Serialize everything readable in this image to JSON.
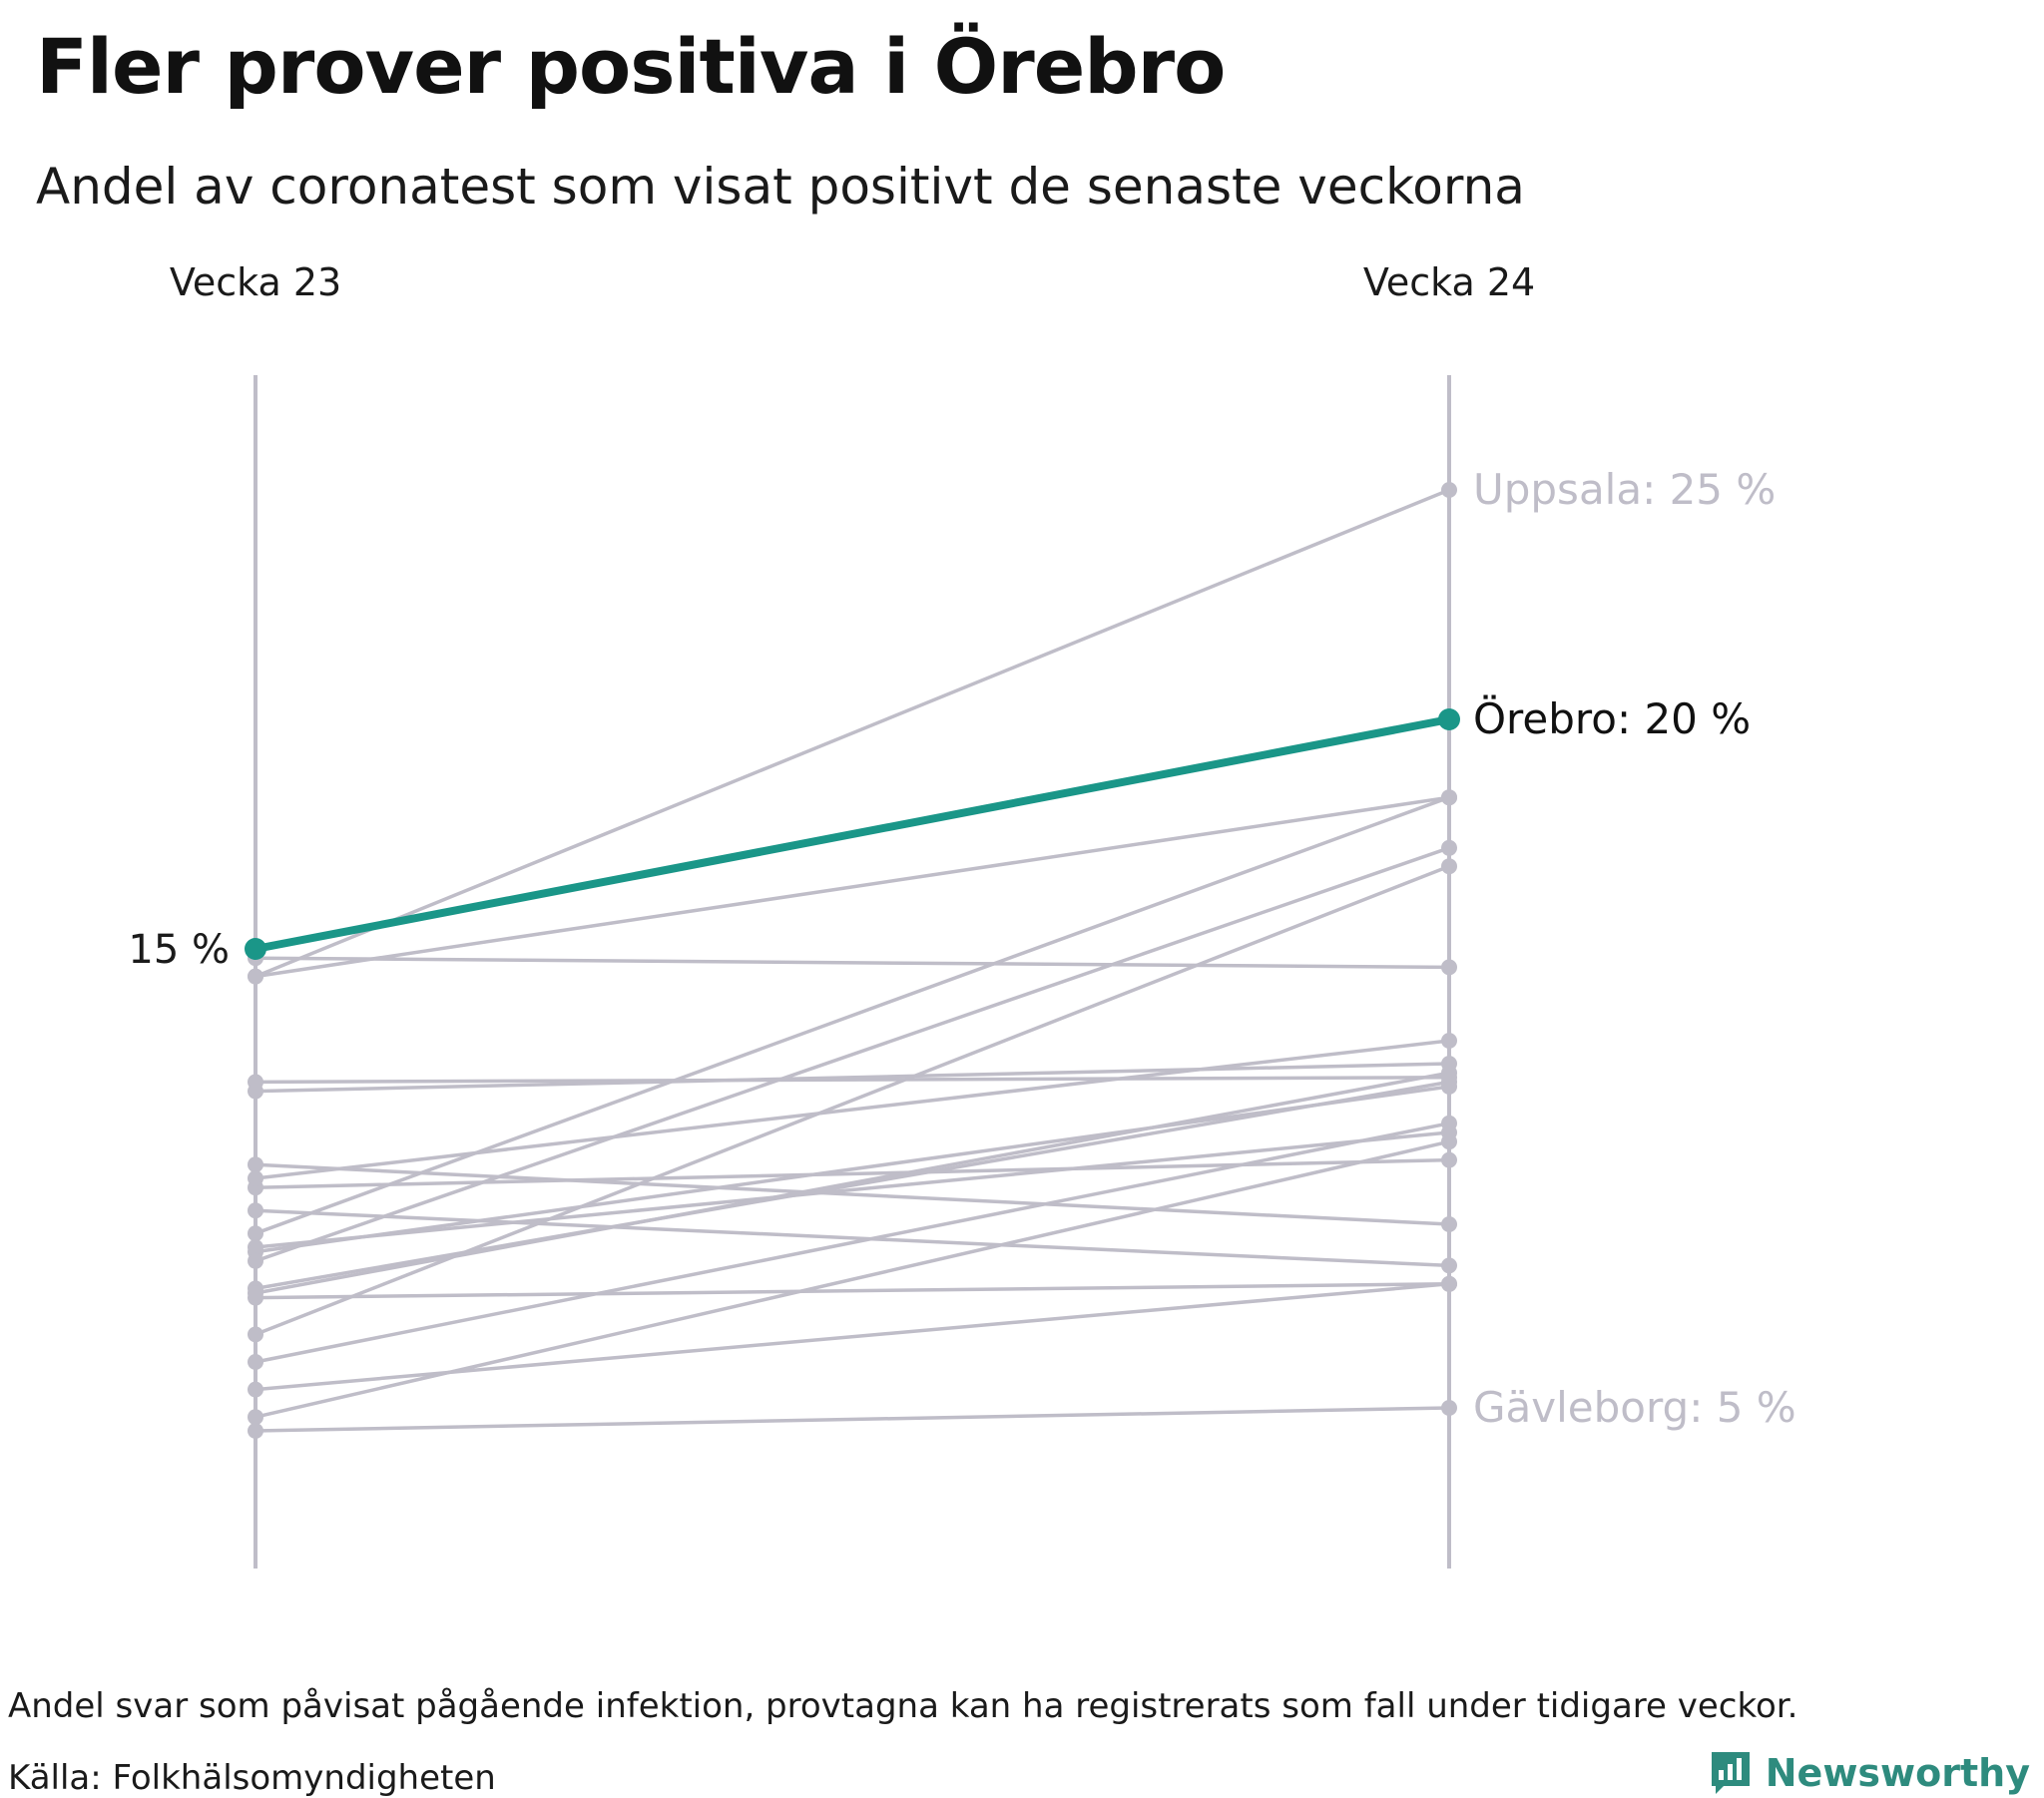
{
  "chart_data": {
    "type": "line",
    "subtype": "slope",
    "title": "Fler prover positiva i Örebro",
    "subtitle": "Andel av coronatest som visat positivt de senaste veckorna",
    "x": [
      "Vecka 23",
      "Vecka 24"
    ],
    "ylim": [
      1.5,
      27.5
    ],
    "unit": "%",
    "highlight": {
      "name": "Örebro",
      "values": [
        15,
        20
      ],
      "color": "#1a9688"
    },
    "start_label": "15 %",
    "end_labels": {
      "top": "Uppsala: 25 %",
      "highlight": "Örebro: 20 %",
      "bottom": "Gävleborg: 5 %"
    },
    "series": [
      {
        "name": "Uppsala",
        "values": [
          14.4,
          25
        ]
      },
      {
        "name": "Gävleborg",
        "values": [
          4.5,
          5
        ]
      },
      {
        "values": [
          14.4,
          18.3
        ]
      },
      {
        "values": [
          14.8,
          14.6
        ]
      },
      {
        "values": [
          12.1,
          12.2
        ]
      },
      {
        "values": [
          11.9,
          12.5
        ]
      },
      {
        "values": [
          10.3,
          9.0
        ]
      },
      {
        "values": [
          9.8,
          10.4
        ]
      },
      {
        "values": [
          9.3,
          8.1
        ]
      },
      {
        "values": [
          8.8,
          18.3
        ]
      },
      {
        "values": [
          8.5,
          11.0
        ]
      },
      {
        "values": [
          8.4,
          12.0
        ]
      },
      {
        "values": [
          8.2,
          17.2
        ]
      },
      {
        "values": [
          7.6,
          12.1
        ]
      },
      {
        "values": [
          7.4,
          7.7
        ]
      },
      {
        "values": [
          6.6,
          16.8
        ]
      },
      {
        "values": [
          6.0,
          11.2
        ]
      },
      {
        "values": [
          5.4,
          7.7
        ]
      },
      {
        "values": [
          4.8,
          10.8
        ]
      },
      {
        "values": [
          7.5,
          12.3
        ]
      },
      {
        "values": [
          10.0,
          13.0
        ]
      }
    ],
    "colors": {
      "other": "#bfbdc8",
      "highlight": "#1a9688"
    }
  },
  "footnote": "Andel svar som påvisat pågående infektion, provtagna kan ha registrerats som fall under tidigare veckor.",
  "source": "Källa: Folkhälsomyndigheten",
  "brand": {
    "name": "Newsworthy",
    "icon": "newsworthy-logo-icon",
    "color": "#2e8b7e"
  }
}
